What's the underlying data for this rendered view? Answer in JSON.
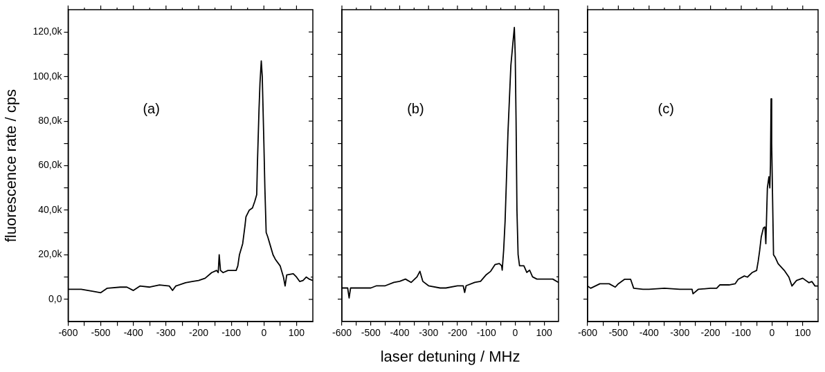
{
  "chart_data": [
    {
      "type": "line",
      "ylabel": "fluorescence rate / cps",
      "annotations": [
        "(a)"
      ],
      "marker": "none",
      "line_style": "solid",
      "legend": false,
      "xlim": [
        -600,
        150
      ],
      "ylim": [
        -10000,
        130000
      ],
      "xticks": [
        -600,
        {
          "value": -550,
          "label": null
        },
        -500,
        {
          "value": -450,
          "label": null
        },
        -400,
        {
          "value": -350,
          "label": null
        },
        -300,
        {
          "value": -250,
          "label": null
        },
        -200,
        {
          "value": -150,
          "label": null
        },
        -100,
        {
          "value": -50,
          "label": null
        },
        0,
        {
          "value": 50,
          "label": null
        },
        100
      ],
      "yticks": [
        {
          "value": 0,
          "label": "0,0"
        },
        {
          "value": 10000,
          "label": null
        },
        {
          "value": 20000,
          "label": "20,0k"
        },
        {
          "value": 30000,
          "label": null
        },
        {
          "value": 40000,
          "label": "40,0k"
        },
        {
          "value": 50000,
          "label": null
        },
        {
          "value": 60000,
          "label": "60,0k"
        },
        {
          "value": 70000,
          "label": null
        },
        {
          "value": 80000,
          "label": "80,0k"
        },
        {
          "value": 90000,
          "label": null
        },
        {
          "value": 100000,
          "label": "100,0k"
        },
        {
          "value": 110000,
          "label": null
        },
        {
          "value": 120000,
          "label": "120,0k"
        }
      ],
      "series": [
        {
          "color": "#000000",
          "x": [
            -600,
            -560,
            -520,
            -500,
            -480,
            -440,
            -420,
            -400,
            -380,
            -350,
            -320,
            -290,
            -280,
            -270,
            -240,
            -220,
            -200,
            -180,
            -160,
            -145,
            -140,
            -137,
            -133,
            -125,
            -110,
            -100,
            -85,
            -80,
            -75,
            -65,
            -58,
            -55,
            -45,
            -35,
            -28,
            -22,
            -20,
            -15,
            -12,
            -8,
            -5,
            0,
            3,
            7,
            12,
            20,
            28,
            35,
            50,
            60,
            65,
            70,
            90,
            100,
            110,
            120,
            130,
            140,
            150
          ],
          "values": [
            4500,
            4500,
            3500,
            3000,
            5000,
            5500,
            5500,
            4000,
            6000,
            5500,
            6500,
            6000,
            4000,
            6000,
            7500,
            8000,
            8500,
            9500,
            12000,
            13000,
            12000,
            20000,
            13000,
            12000,
            13000,
            13000,
            13000,
            15000,
            20000,
            25000,
            33000,
            37000,
            40000,
            41000,
            44000,
            47000,
            60000,
            85000,
            97000,
            107000,
            100000,
            70000,
            50000,
            30000,
            28000,
            24000,
            20000,
            18000,
            15000,
            10000,
            6000,
            11000,
            11500,
            10000,
            8000,
            8500,
            10000,
            9000,
            8500
          ]
        }
      ]
    },
    {
      "type": "line",
      "xlabel": "laser detuning / MHz",
      "annotations": [
        "(b)"
      ],
      "marker": "none",
      "line_style": "solid",
      "legend": false,
      "tick_labels": "x",
      "xlim": [
        -600,
        150
      ],
      "ylim": [
        -10000,
        130000
      ],
      "xticks": [
        -600,
        {
          "value": -550,
          "label": null
        },
        -500,
        {
          "value": -450,
          "label": null
        },
        -400,
        {
          "value": -350,
          "label": null
        },
        -300,
        {
          "value": -250,
          "label": null
        },
        -200,
        {
          "value": -150,
          "label": null
        },
        -100,
        {
          "value": -50,
          "label": null
        },
        0,
        {
          "value": 50,
          "label": null
        },
        100
      ],
      "yticks": [
        {
          "value": 0,
          "label": null
        },
        {
          "value": 10000,
          "label": null
        },
        {
          "value": 20000,
          "label": null
        },
        {
          "value": 30000,
          "label": null
        },
        {
          "value": 40000,
          "label": null
        },
        {
          "value": 50000,
          "label": null
        },
        {
          "value": 60000,
          "label": null
        },
        {
          "value": 70000,
          "label": null
        },
        {
          "value": 80000,
          "label": null
        },
        {
          "value": 90000,
          "label": null
        },
        {
          "value": 100000,
          "label": null
        },
        {
          "value": 110000,
          "label": null
        },
        {
          "value": 120000,
          "label": null
        }
      ],
      "series": [
        {
          "color": "#000000",
          "x": [
            -600,
            -580,
            -575,
            -570,
            -540,
            -500,
            -480,
            -450,
            -420,
            -400,
            -380,
            -360,
            -340,
            -330,
            -320,
            -300,
            -260,
            -240,
            -200,
            -180,
            -175,
            -170,
            -140,
            -120,
            -100,
            -85,
            -70,
            -55,
            -47,
            -45,
            -40,
            -35,
            -30,
            -25,
            -20,
            -15,
            -8,
            -3,
            0,
            3,
            6,
            10,
            15,
            30,
            40,
            50,
            60,
            75,
            100,
            130,
            150
          ],
          "values": [
            5000,
            5000,
            500,
            5000,
            5000,
            5000,
            6000,
            6000,
            7500,
            8000,
            9000,
            7500,
            10000,
            12500,
            8000,
            6000,
            5000,
            5000,
            6000,
            6000,
            3000,
            6000,
            7500,
            8000,
            11000,
            12500,
            15500,
            16000,
            15000,
            13000,
            22000,
            35000,
            55000,
            75000,
            90000,
            105000,
            115000,
            122000,
            110000,
            80000,
            40000,
            20000,
            15000,
            15000,
            12000,
            13000,
            10000,
            9000,
            9000,
            9000,
            7500
          ]
        }
      ]
    },
    {
      "type": "line",
      "annotations": [
        "(c)"
      ],
      "marker": "none",
      "line_style": "solid",
      "legend": false,
      "tick_labels": "x",
      "xlim": [
        -600,
        150
      ],
      "ylim": [
        -10000,
        130000
      ],
      "xticks": [
        -600,
        {
          "value": -550,
          "label": null
        },
        -500,
        {
          "value": -450,
          "label": null
        },
        -400,
        {
          "value": -350,
          "label": null
        },
        -300,
        {
          "value": -250,
          "label": null
        },
        -200,
        {
          "value": -150,
          "label": null
        },
        -100,
        {
          "value": -50,
          "label": null
        },
        0,
        {
          "value": 50,
          "label": null
        },
        100
      ],
      "yticks": [
        {
          "value": 0,
          "label": null
        },
        {
          "value": 10000,
          "label": null
        },
        {
          "value": 20000,
          "label": null
        },
        {
          "value": 30000,
          "label": null
        },
        {
          "value": 40000,
          "label": null
        },
        {
          "value": 50000,
          "label": null
        },
        {
          "value": 60000,
          "label": null
        },
        {
          "value": 70000,
          "label": null
        },
        {
          "value": 80000,
          "label": null
        },
        {
          "value": 90000,
          "label": null
        },
        {
          "value": 100000,
          "label": null
        },
        {
          "value": 110000,
          "label": null
        },
        {
          "value": 120000,
          "label": null
        }
      ],
      "series": [
        {
          "color": "#000000",
          "x": [
            -600,
            -590,
            -560,
            -530,
            -510,
            -500,
            -480,
            -460,
            -450,
            -420,
            -400,
            -350,
            -300,
            -260,
            -257,
            -240,
            -200,
            -180,
            -170,
            -140,
            -120,
            -110,
            -90,
            -80,
            -65,
            -50,
            -45,
            -40,
            -35,
            -28,
            -23,
            -20,
            -18,
            -15,
            -10,
            -7,
            -5,
            -3,
            -1,
            2,
            5,
            10,
            20,
            40,
            55,
            65,
            80,
            100,
            120,
            130,
            140,
            150
          ],
          "values": [
            6000,
            5000,
            7000,
            7000,
            5500,
            7000,
            9000,
            9000,
            5000,
            4500,
            4500,
            5000,
            4500,
            4500,
            2500,
            4500,
            5000,
            5000,
            6500,
            6500,
            7000,
            9000,
            10500,
            10000,
            12000,
            13000,
            17000,
            22000,
            28000,
            32000,
            32500,
            25000,
            35000,
            50000,
            55000,
            50000,
            60000,
            90000,
            70000,
            45000,
            20000,
            19000,
            16000,
            13000,
            10000,
            6000,
            8500,
            9500,
            7500,
            8000,
            6000,
            6000
          ]
        }
      ]
    }
  ]
}
